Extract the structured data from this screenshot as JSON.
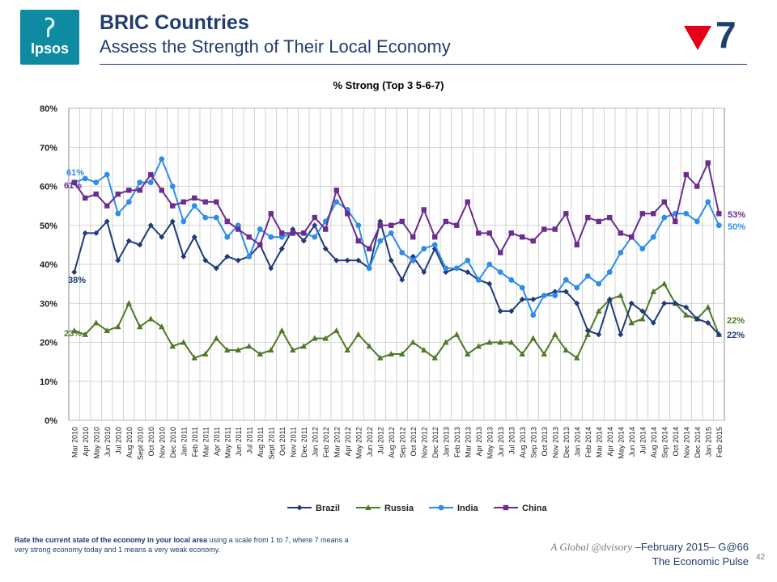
{
  "header": {
    "logo_text": "Ipsos",
    "title": "BRIC Countries",
    "subtitle": "Assess the Strength of Their Local Economy",
    "badge_number": "7",
    "badge_arrow_color": "#e3001b"
  },
  "footer": {
    "note_bold": "Rate the current state of the economy in your local area",
    "note_rest": " using a scale from 1 to 7, where 7 means a very strong economy today and 1 means a very weak economy.",
    "advisory": "A Global @dvisory",
    "date": " –February 2015– G@66",
    "pulse": "The Economic Pulse",
    "page_number": "42"
  },
  "chart_data": {
    "type": "line",
    "title": "% Strong  (Top 3 5-6-7)",
    "ylim": [
      0,
      80
    ],
    "yticks": [
      "0%",
      "10%",
      "20%",
      "30%",
      "40%",
      "50%",
      "60%",
      "70%",
      "80%"
    ],
    "grid": true,
    "legend_position": "bottom",
    "categories": [
      "Mar 2010",
      "Apr 2010",
      "May 2010",
      "Jun 2010",
      "Jul 2010",
      "Aug 2010",
      "Sept 2010",
      "Oct 2010",
      "Nov 2010",
      "Dec 2010",
      "Jan 2011",
      "Feb 2011",
      "Mar 2011",
      "Apr 2011",
      "May 2011",
      "Jun 2011",
      "Jul 2011",
      "Aug 2011",
      "Sept 2011",
      "Oct 2011",
      "Nov 2011",
      "Dec 2011",
      "Jan 2012",
      "Feb 2012",
      "Mar 2012",
      "Apr 2012",
      "May 2012",
      "Jun 2012",
      "Jul 2012",
      "Aug 2012",
      "Sep 2012",
      "Oct 2012",
      "Nov 2012",
      "Dec 2012",
      "Jan 2013",
      "Feb 2013",
      "Mar 2013",
      "Apr 2013",
      "May 2013",
      "Jun 2013",
      "Jul 2013",
      "Aug 2013",
      "Sep 2013",
      "Oct 2013",
      "Nov 2013",
      "Dec 2013",
      "Jan 2014",
      "Feb 2014",
      "Mar 2014",
      "Apr 2014",
      "May 2014",
      "Jun 2014",
      "Jul 2014",
      "Aug 2014",
      "Sep 2014",
      "Oct 2014",
      "Nov 2014",
      "Dec 2014",
      "Jan 2015",
      "Feb 2015"
    ],
    "series": [
      {
        "name": "Brazil",
        "color": "#1f3b78",
        "marker": "diamond",
        "start_label": "38%",
        "end_label": "22%",
        "values": [
          38,
          48,
          48,
          51,
          41,
          46,
          45,
          50,
          47,
          51,
          42,
          47,
          41,
          39,
          42,
          41,
          42,
          45,
          39,
          44,
          49,
          46,
          50,
          44,
          41,
          41,
          41,
          39,
          51,
          41,
          36,
          42,
          38,
          44,
          38,
          39,
          38,
          36,
          35,
          28,
          28,
          31,
          31,
          32,
          33,
          33,
          30,
          23,
          22,
          31,
          22,
          30,
          28,
          25,
          30,
          30,
          29,
          26,
          25,
          22
        ]
      },
      {
        "name": "Russia",
        "color": "#4f7a28",
        "marker": "triangle",
        "start_label": "23%",
        "end_label": "22%",
        "values": [
          23,
          22,
          25,
          23,
          24,
          30,
          24,
          26,
          24,
          19,
          20,
          16,
          17,
          21,
          18,
          18,
          19,
          17,
          18,
          23,
          18,
          19,
          21,
          21,
          23,
          18,
          22,
          19,
          16,
          17,
          17,
          20,
          18,
          16,
          20,
          22,
          17,
          19,
          20,
          20,
          20,
          17,
          21,
          17,
          22,
          18,
          16,
          22,
          28,
          31,
          32,
          25,
          26,
          33,
          35,
          30,
          27,
          26,
          29,
          22
        ]
      },
      {
        "name": "India",
        "color": "#2e8de8",
        "marker": "circle",
        "start_label": "61%",
        "end_label": "50%",
        "values": [
          61,
          62,
          61,
          63,
          53,
          56,
          61,
          61,
          67,
          60,
          51,
          55,
          52,
          52,
          47,
          50,
          42,
          49,
          47,
          47,
          48,
          48,
          47,
          51,
          56,
          54,
          50,
          39,
          46,
          48,
          43,
          41,
          44,
          45,
          39,
          39,
          41,
          36,
          40,
          38,
          36,
          34,
          27,
          32,
          32,
          36,
          34,
          37,
          35,
          38,
          43,
          47,
          44,
          47,
          52,
          53,
          53,
          51,
          56,
          50
        ]
      },
      {
        "name": "China",
        "color": "#6b2d8e",
        "marker": "square",
        "start_label": "61%",
        "end_label": "53%",
        "values": [
          61,
          57,
          58,
          55,
          58,
          59,
          59,
          63,
          59,
          55,
          56,
          57,
          56,
          56,
          51,
          49,
          47,
          45,
          53,
          48,
          48,
          48,
          52,
          49,
          59,
          53,
          46,
          44,
          50,
          50,
          51,
          47,
          54,
          47,
          51,
          50,
          56,
          48,
          48,
          43,
          48,
          47,
          46,
          49,
          49,
          53,
          45,
          52,
          51,
          52,
          48,
          47,
          53,
          53,
          56,
          51,
          63,
          60,
          66,
          53
        ]
      }
    ]
  }
}
